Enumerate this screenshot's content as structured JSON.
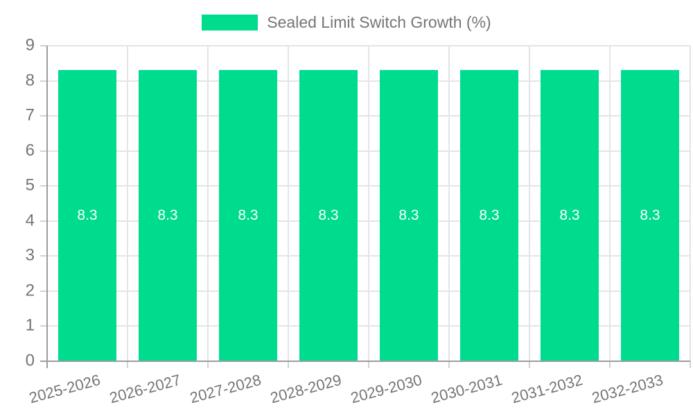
{
  "legend": {
    "label": "Sealed Limit Switch Growth (%)"
  },
  "chart_data": {
    "type": "bar",
    "title": "",
    "xlabel": "",
    "ylabel": "",
    "categories": [
      "2025-2026",
      "2026-2027",
      "2027-2028",
      "2028-2029",
      "2029-2030",
      "2030-2031",
      "2031-2032",
      "2032-2033"
    ],
    "series": [
      {
        "name": "Sealed Limit Switch Growth (%)",
        "values": [
          8.3,
          8.3,
          8.3,
          8.3,
          8.3,
          8.3,
          8.3,
          8.3
        ],
        "color": "#00DC8E"
      }
    ],
    "value_labels": [
      "8.3",
      "8.3",
      "8.3",
      "8.3",
      "8.3",
      "8.3",
      "8.3",
      "8.3"
    ],
    "ylim": [
      0,
      9
    ],
    "yticks": [
      0,
      1,
      2,
      3,
      4,
      5,
      6,
      7,
      8,
      9
    ],
    "grid": true,
    "legend_position": "top",
    "value_labels_inside_bars": true,
    "colors": {
      "bar": "#00DC8E",
      "grid": "#E4E4E4",
      "tick": "#D2D2D2",
      "axis": "#9C9C9C",
      "text": "#757575",
      "value_label": "#FFFFFF",
      "background": "#FFFFFF"
    }
  }
}
